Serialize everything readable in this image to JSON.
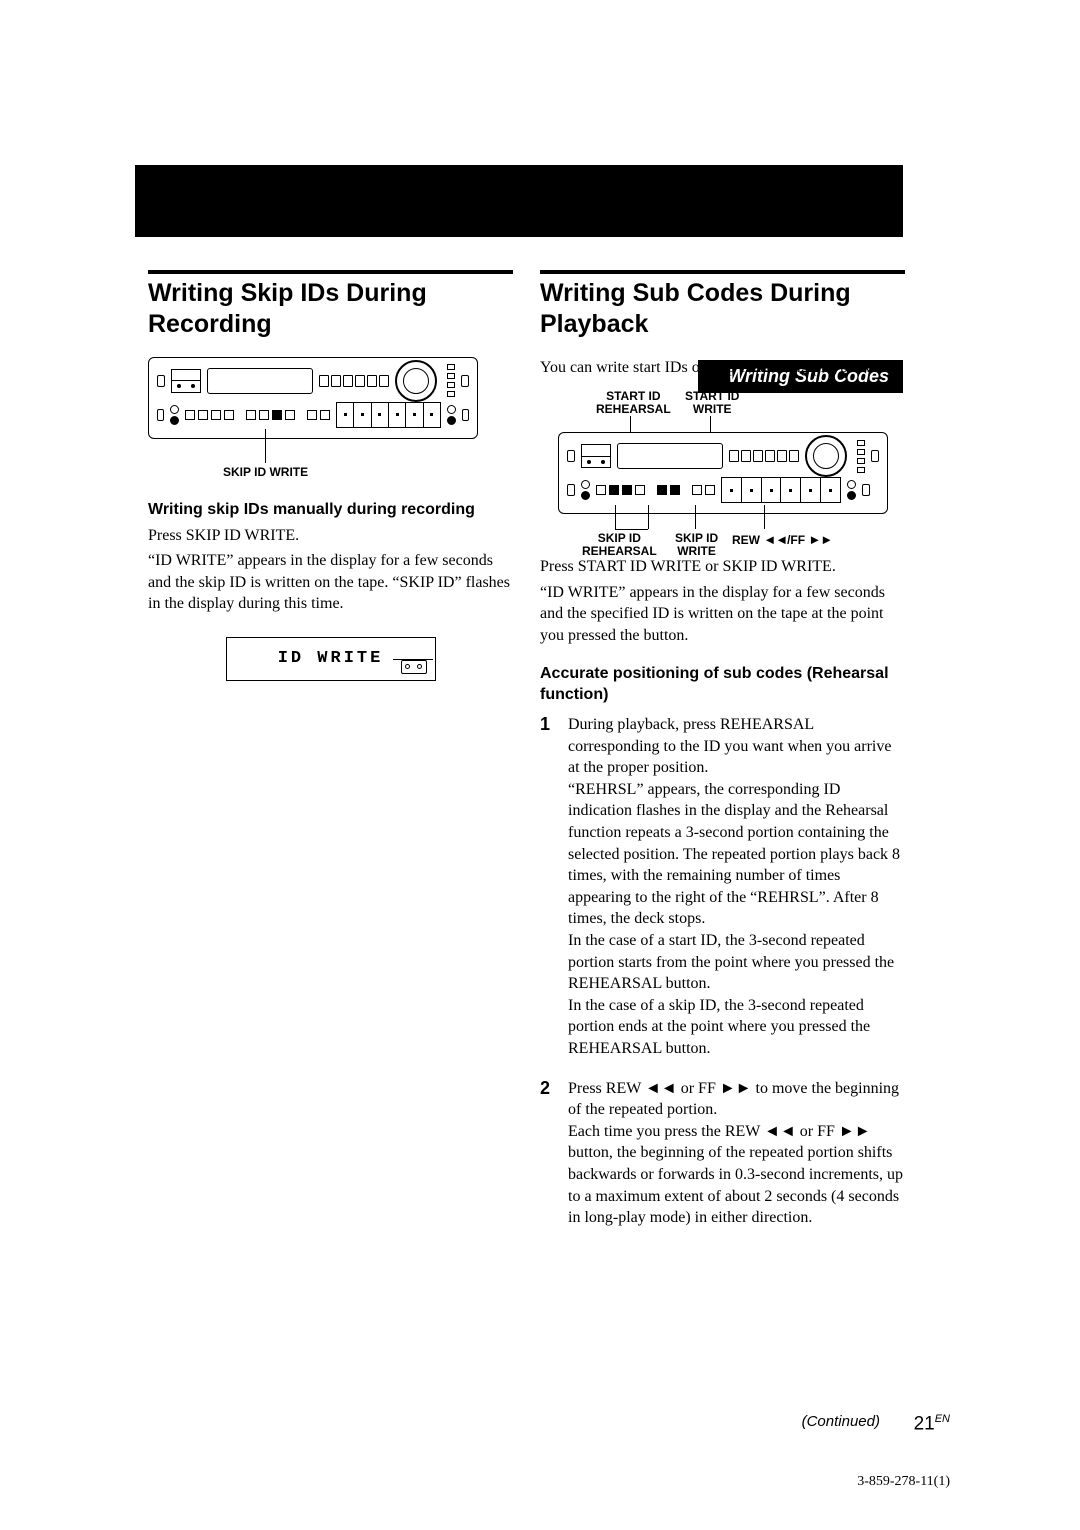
{
  "section_tag": "Writing Sub Codes",
  "left": {
    "title": "Writing Skip IDs During Recording",
    "callout": "SKIP ID WRITE",
    "sub": "Writing skip IDs manually during recording",
    "p1": "Press SKIP ID WRITE.",
    "p2": "“ID WRITE” appears in the display for a few seconds and the skip ID is written on the tape.  “SKIP ID” flashes in the display during this time.",
    "lcd": "ID WRITE"
  },
  "right": {
    "title": "Writing Sub Codes During Playback",
    "intro": "You can write start IDs or skip IDs during playback.",
    "callouts": {
      "a": "START ID\nREHEARSAL",
      "b": "START ID\nWRITE",
      "c": "SKIP ID\nREHEARSAL",
      "d": "SKIP ID\nWRITE",
      "e": "REW ◄◄/FF ►►"
    },
    "p1": "Press START ID WRITE or SKIP ID WRITE.",
    "p2": "“ID WRITE” appears in the display for a few seconds and the specified ID is written on the tape at the point you pressed the button.",
    "sub2": "Accurate positioning of sub codes (Rehearsal function)",
    "steps": [
      "During playback, press REHEARSAL corresponding to the ID you want when you arrive at the proper position.\n“REHRSL” appears, the corresponding ID indication flashes in the display and the Rehearsal function repeats a 3-second portion containing the selected position.  The repeated portion plays back 8 times, with the remaining number of times appearing to the right of the “REHRSL”.  After 8 times, the deck stops.\nIn the case of a start ID, the 3-second repeated portion starts from the point where you pressed the REHEARSAL button.\nIn the case of a skip ID, the 3-second repeated portion ends at the point where you pressed the REHEARSAL button.",
      "Press REW ◄◄ or FF ►► to move the beginning of the repeated portion.\nEach time you press the REW ◄◄ or FF ►► button, the beginning of the repeated portion shifts backwards or forwards in 0.3-second increments, up to a maximum extent of about 2 seconds (4 seconds in long-play mode) in either direction."
    ]
  },
  "continued": "(Continued)",
  "page_num": "21",
  "page_suffix": "EN",
  "doc_num": "3-859-278-11(1)"
}
